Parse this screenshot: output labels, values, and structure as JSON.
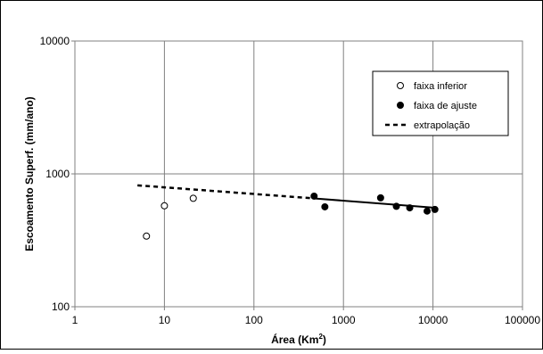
{
  "chart_data": {
    "type": "scatter",
    "xscale": "log",
    "yscale": "log",
    "xlim": [
      1,
      100000
    ],
    "ylim": [
      100,
      10000
    ],
    "grid": true,
    "legend_placement": "top-right",
    "xlabel": "Área (Km",
    "xlabel_sup": "2",
    "xlabel_end": ")",
    "ylabel": "Escoamento Superf. (mm/ano)",
    "x_ticks": [
      {
        "value": 1,
        "label": "1"
      },
      {
        "value": 10,
        "label": "10"
      },
      {
        "value": 100,
        "label": "100"
      },
      {
        "value": 1000,
        "label": "1000"
      },
      {
        "value": 10000,
        "label": "10000"
      },
      {
        "value": 100000,
        "label": "100000"
      }
    ],
    "y_ticks": [
      {
        "value": 100,
        "label": "100"
      },
      {
        "value": 1000,
        "label": "1000"
      },
      {
        "value": 10000,
        "label": "10000"
      }
    ],
    "series": [
      {
        "name": "faixa inferior",
        "kind": "points-open",
        "color": "#000000",
        "points": [
          {
            "x": 6.3,
            "y": 340
          },
          {
            "x": 10,
            "y": 575
          },
          {
            "x": 21,
            "y": 655
          }
        ]
      },
      {
        "name": "faixa de ajuste",
        "kind": "points-filled",
        "color": "#000000",
        "points": [
          {
            "x": 470,
            "y": 680
          },
          {
            "x": 620,
            "y": 565
          },
          {
            "x": 2600,
            "y": 660
          },
          {
            "x": 3900,
            "y": 570
          },
          {
            "x": 5500,
            "y": 555
          },
          {
            "x": 8600,
            "y": 525
          },
          {
            "x": 10500,
            "y": 540
          }
        ]
      },
      {
        "name": "",
        "kind": "line-solid",
        "color": "#000000",
        "points": [
          {
            "x": 450,
            "y": 655
          },
          {
            "x": 11000,
            "y": 555
          }
        ]
      },
      {
        "name": "extrapolação",
        "kind": "line-dashed",
        "color": "#000000",
        "points": [
          {
            "x": 5,
            "y": 820
          },
          {
            "x": 450,
            "y": 655
          }
        ]
      }
    ]
  }
}
